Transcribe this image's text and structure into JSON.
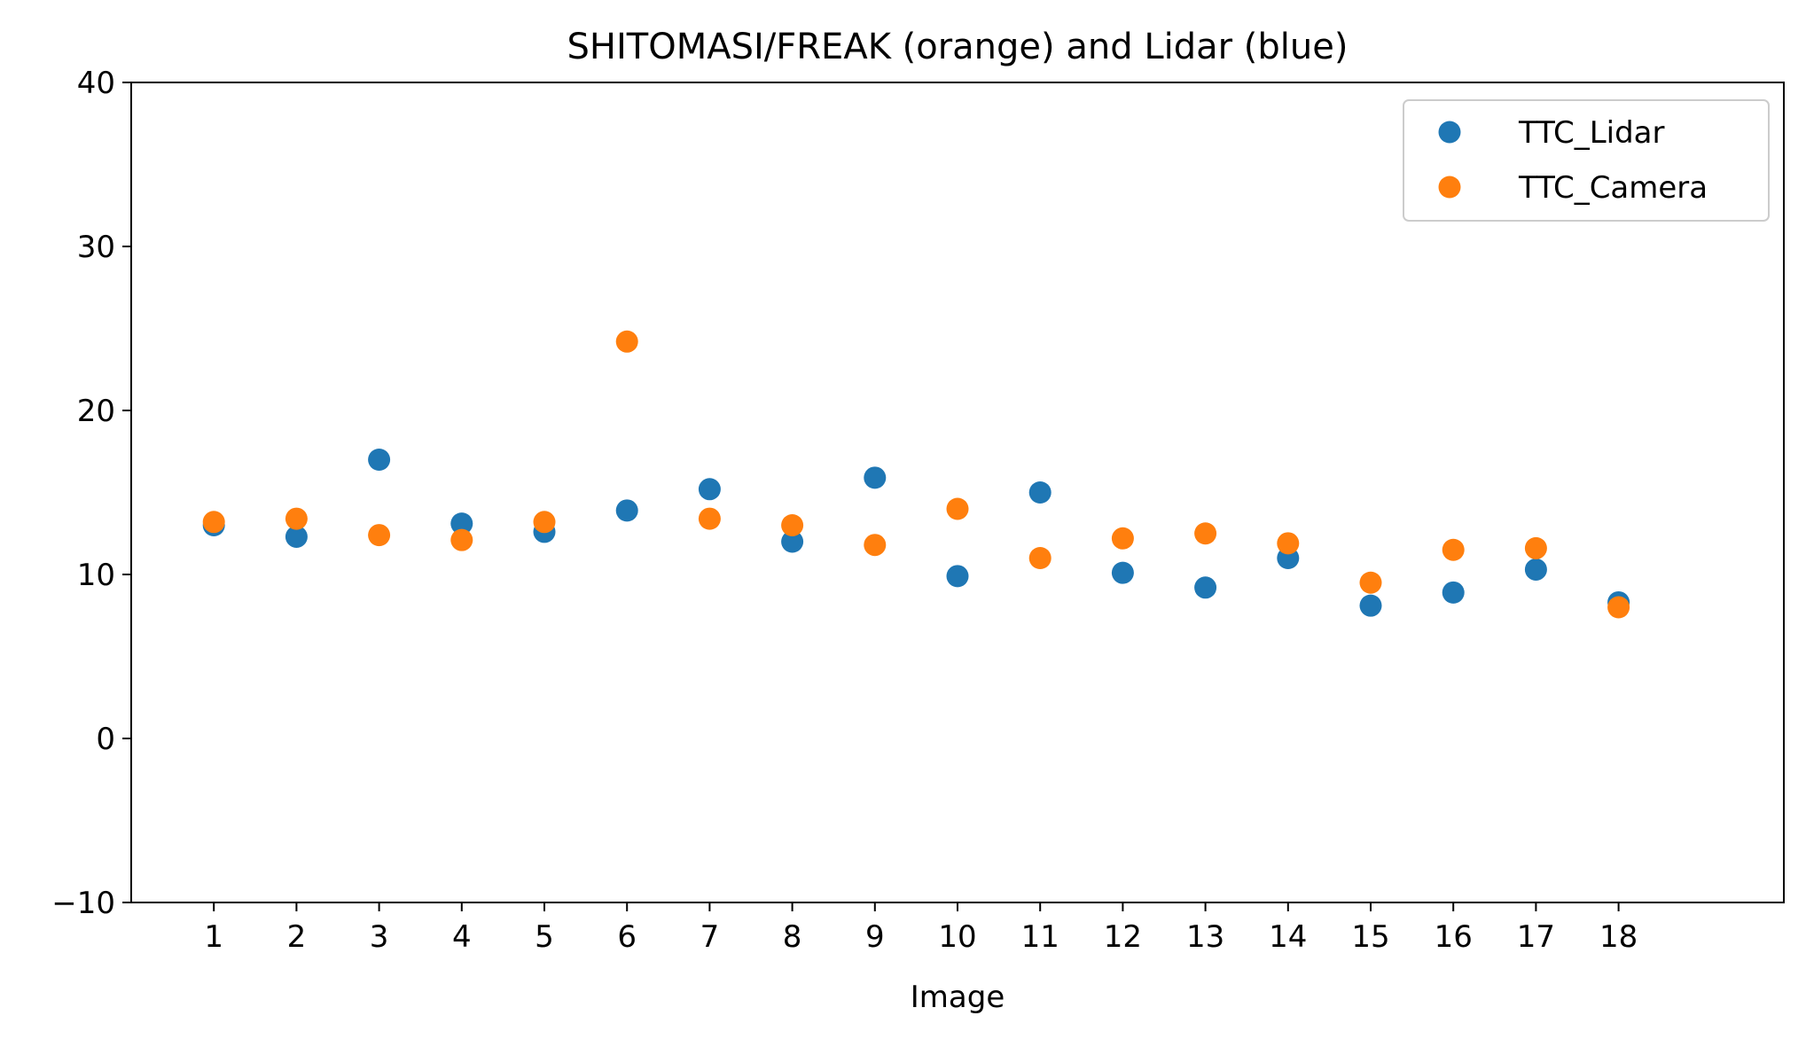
{
  "chart_data": {
    "type": "scatter",
    "title": "SHITOMASI/FREAK (orange) and Lidar (blue)",
    "xlabel": "Image",
    "ylabel": "",
    "x": [
      1,
      2,
      3,
      4,
      5,
      6,
      7,
      8,
      9,
      10,
      11,
      12,
      13,
      14,
      15,
      16,
      17,
      18
    ],
    "x_tick_labels": [
      "1",
      "2",
      "3",
      "4",
      "5",
      "6",
      "7",
      "8",
      "9",
      "10",
      "11",
      "12",
      "13",
      "14",
      "15",
      "16",
      "17",
      "18"
    ],
    "xlim": [
      0,
      20
    ],
    "ylim": [
      -10,
      40
    ],
    "y_ticks": [
      -10,
      0,
      10,
      20,
      30,
      40
    ],
    "y_tick_labels": [
      "−10",
      "0",
      "10",
      "20",
      "30",
      "40"
    ],
    "grid": false,
    "legend_position": "top-right",
    "series": [
      {
        "name": "TTC_Lidar",
        "color": "#1f77b4",
        "values": [
          13.0,
          12.3,
          17.0,
          13.1,
          12.6,
          13.9,
          15.2,
          12.0,
          15.9,
          9.9,
          15.0,
          10.1,
          9.2,
          11.0,
          8.1,
          8.9,
          10.3,
          8.3
        ]
      },
      {
        "name": "TTC_Camera",
        "color": "#ff7f0e",
        "values": [
          13.2,
          13.4,
          12.4,
          12.1,
          13.2,
          24.2,
          13.4,
          13.0,
          11.8,
          14.0,
          11.0,
          12.2,
          12.5,
          11.9,
          9.5,
          11.5,
          11.6,
          8.0
        ]
      }
    ]
  }
}
